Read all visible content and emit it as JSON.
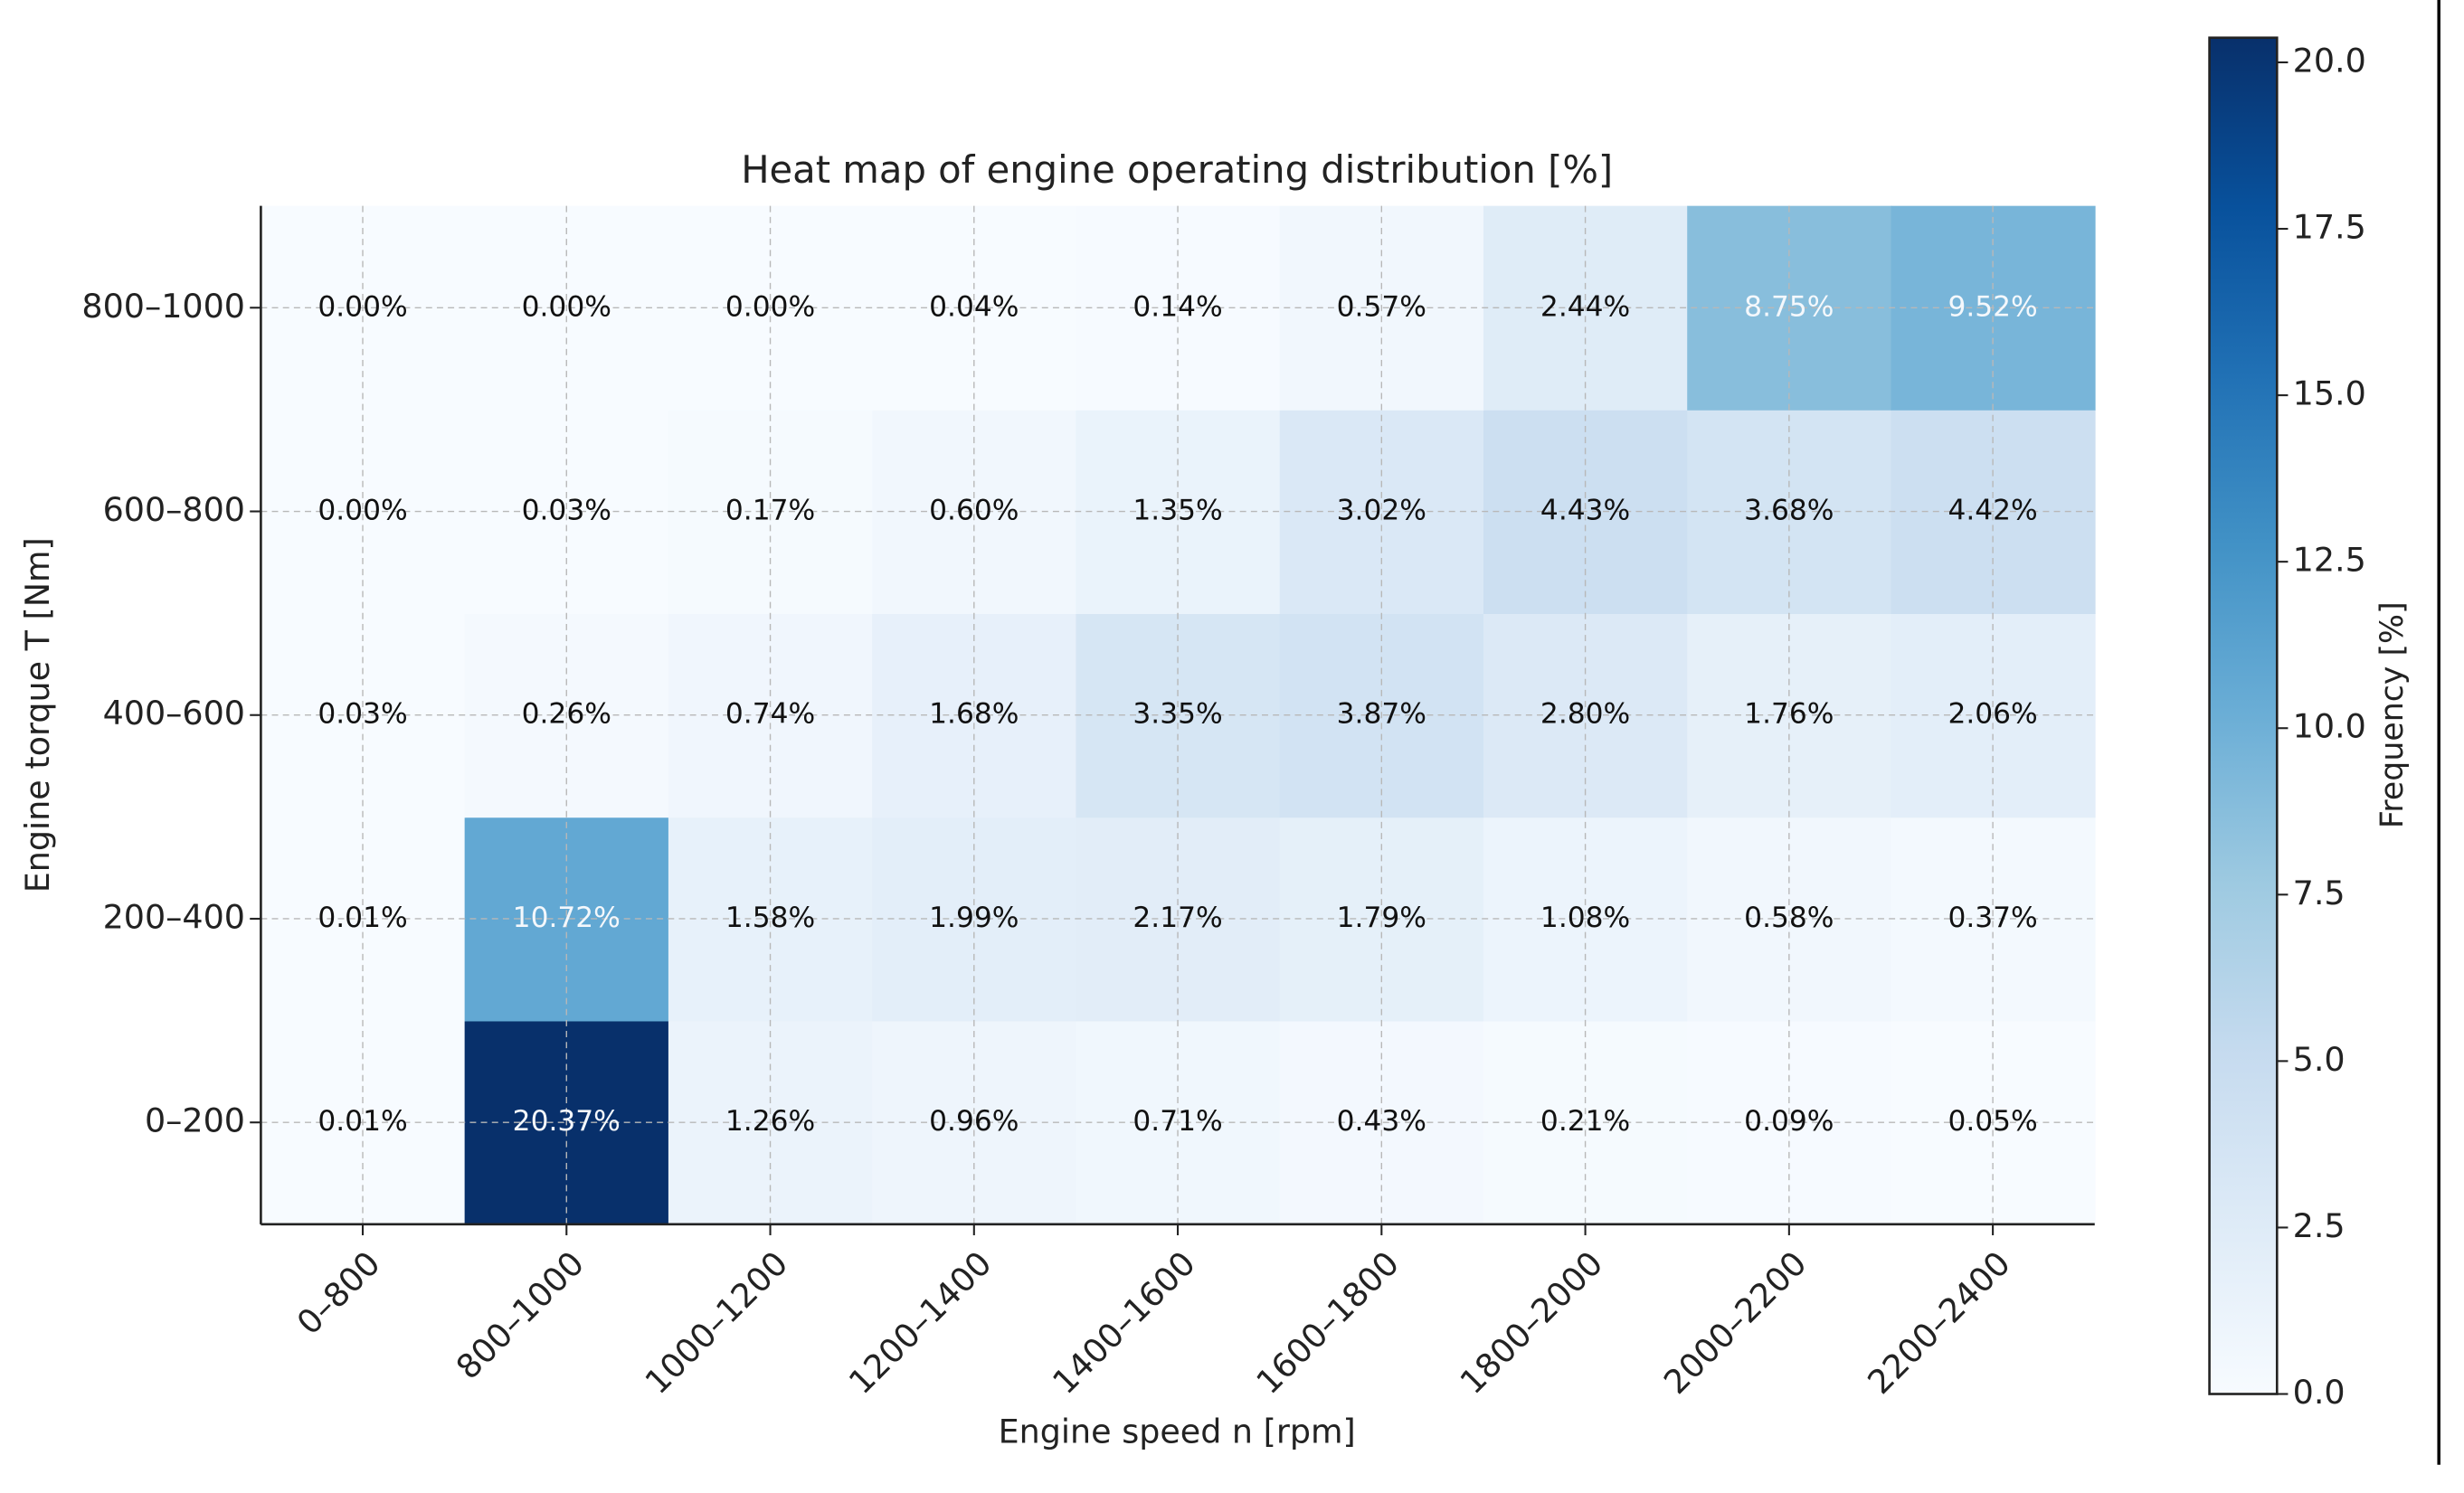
{
  "chart_data": {
    "type": "heatmap",
    "title": "Heat map of engine operating distribution [%]",
    "x_label": "Engine speed n [rpm]",
    "y_label": "Engine torque T [Nm]",
    "categories": [
      "0–800",
      "800–1000",
      "1000–1200",
      "1200–1400",
      "1400–1600",
      "1600–1800",
      "1800–2000",
      "2000–2200",
      "2200–2400"
    ],
    "y_categories": [
      "0–200",
      "200–400",
      "400–600",
      "600–800",
      "800–1000"
    ],
    "values": [
      [
        0.01,
        20.37,
        1.26,
        0.96,
        0.71,
        0.43,
        0.21,
        0.09,
        0.05
      ],
      [
        0.01,
        10.72,
        1.58,
        1.99,
        2.17,
        1.79,
        1.08,
        0.58,
        0.37
      ],
      [
        0.03,
        0.26,
        0.74,
        1.68,
        3.35,
        3.87,
        2.8,
        1.76,
        2.06
      ],
      [
        0.0,
        0.03,
        0.17,
        0.6,
        1.35,
        3.02,
        4.43,
        3.68,
        4.42
      ],
      [
        0.0,
        0.0,
        0.0,
        0.04,
        0.14,
        0.57,
        2.44,
        8.75,
        9.52
      ]
    ],
    "value_labels": [
      [
        "0.01%",
        "20.37%",
        "1.26%",
        "0.96%",
        "0.71%",
        "0.43%",
        "0.21%",
        "0.09%",
        "0.05%"
      ],
      [
        "0.01%",
        "10.72%",
        "1.58%",
        "1.99%",
        "2.17%",
        "1.79%",
        "1.08%",
        "0.58%",
        "0.37%"
      ],
      [
        "0.03%",
        "0.26%",
        "0.74%",
        "1.68%",
        "3.35%",
        "3.87%",
        "2.80%",
        "1.76%",
        "2.06%"
      ],
      [
        "0.00%",
        "0.03%",
        "0.17%",
        "0.60%",
        "1.35%",
        "3.02%",
        "4.43%",
        "3.68%",
        "4.42%"
      ],
      [
        "0.00%",
        "0.00%",
        "0.00%",
        "0.04%",
        "0.14%",
        "0.57%",
        "2.44%",
        "8.75%",
        "9.52%"
      ]
    ],
    "colormap": "Blues",
    "grid": true,
    "colorbar_label": "Frequency [%]",
    "clim": [
      0,
      20.37
    ],
    "cticks": [
      {
        "value": 0,
        "label": "0.0"
      },
      {
        "value": 2.5,
        "label": "2.5"
      },
      {
        "value": 5,
        "label": "5.0"
      },
      {
        "value": 7.5,
        "label": "7.5"
      },
      {
        "value": 10,
        "label": "10.0"
      },
      {
        "value": 12.5,
        "label": "12.5"
      },
      {
        "value": 15,
        "label": "15.0"
      },
      {
        "value": 17.5,
        "label": "17.5"
      },
      {
        "value": 20,
        "label": "20.0"
      }
    ]
  }
}
